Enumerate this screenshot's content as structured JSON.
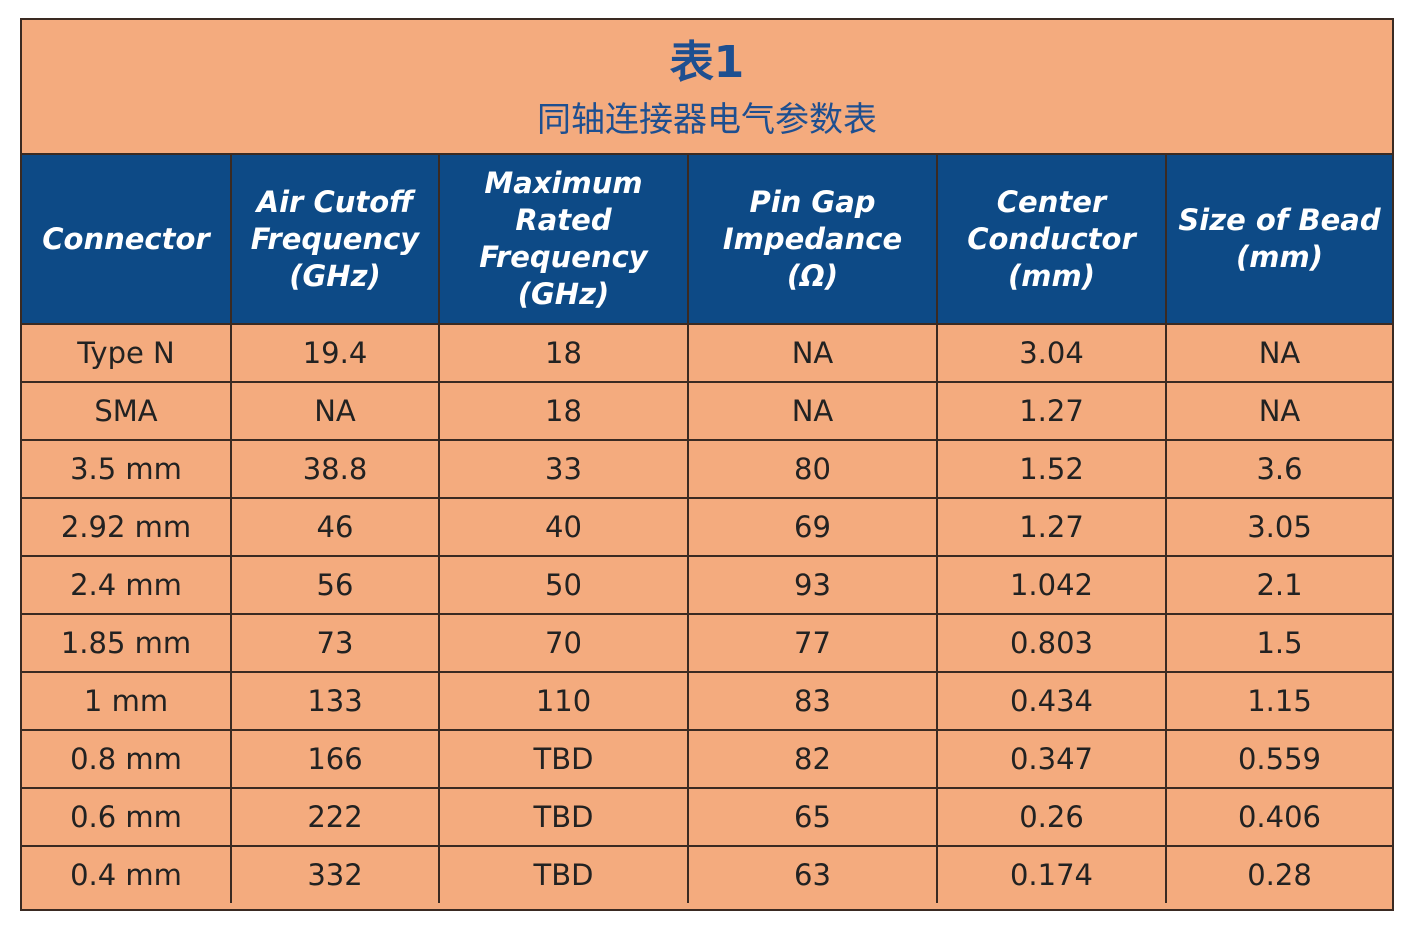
{
  "title": {
    "main": "表1",
    "subtitle": "同轴连接器电气参数表"
  },
  "table": {
    "headers": [
      "Connector",
      "Air Cutoff\nFrequency\n(GHz)",
      "Maximum\nRated\nFrequency\n(GHz)",
      "Pin Gap\nImpedance\n(Ω)",
      "Center\nConductor\n(mm)",
      "Size of Bead\n(mm)"
    ],
    "rows": [
      [
        "Type N",
        "19.4",
        "18",
        "NA",
        "3.04",
        "NA"
      ],
      [
        "SMA",
        "NA",
        "18",
        "NA",
        "1.27",
        "NA"
      ],
      [
        "3.5 mm",
        "38.8",
        "33",
        "80",
        "1.52",
        "3.6"
      ],
      [
        "2.92 mm",
        "46",
        "40",
        "69",
        "1.27",
        "3.05"
      ],
      [
        "2.4 mm",
        "56",
        "50",
        "93",
        "1.042",
        "2.1"
      ],
      [
        "1.85 mm",
        "73",
        "70",
        "77",
        "0.803",
        "1.5"
      ],
      [
        "1 mm",
        "133",
        "110",
        "83",
        "0.434",
        "1.15"
      ],
      [
        "0.8 mm",
        "166",
        "TBD",
        "82",
        "0.347",
        "0.559"
      ],
      [
        "0.6 mm",
        "222",
        "TBD",
        "65",
        "0.26",
        "0.406"
      ],
      [
        "0.4 mm",
        "332",
        "TBD",
        "63",
        "0.174",
        "0.28"
      ]
    ]
  },
  "colors": {
    "title_text": "#1e4f90",
    "header_background": "#0d4a86",
    "cell_background": "#f4ab7e",
    "border": "#3a2a22"
  }
}
